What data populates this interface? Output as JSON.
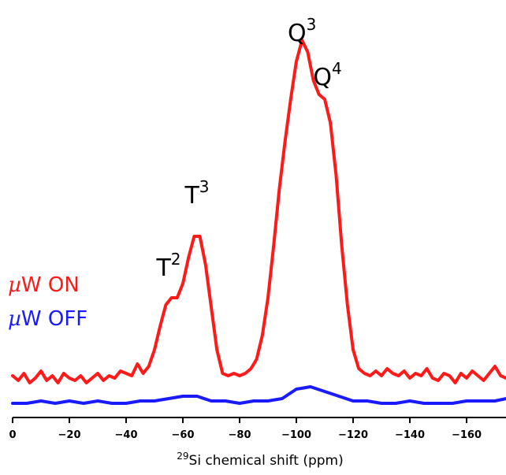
{
  "chart_data": {
    "type": "line",
    "xlabel": {
      "sup": "29",
      "main": "Si chemical shift (ppm)"
    },
    "xlim": [
      0,
      -175
    ],
    "x_ticks": [
      0,
      -20,
      -40,
      -60,
      -80,
      -100,
      -120,
      -140,
      -160
    ],
    "y_axis_shown": false,
    "grid": false,
    "legend_placement": "left",
    "legend": [
      {
        "mu": "µ",
        "text": "W ON",
        "color": "#ff1a1a"
      },
      {
        "mu": "µ",
        "text": "W OFF",
        "color": "#1a1aff"
      }
    ],
    "annotations": [
      {
        "base": "T",
        "sup": "2",
        "x": -55
      },
      {
        "base": "T",
        "sup": "3",
        "x": -65
      },
      {
        "base": "Q",
        "sup": "3",
        "x": -102
      },
      {
        "base": "Q",
        "sup": "4",
        "x": -111
      }
    ],
    "series": [
      {
        "name": "µW ON",
        "color": "#ff1a1a",
        "x": [
          0,
          -2,
          -4,
          -6,
          -8,
          -10,
          -12,
          -14,
          -16,
          -18,
          -20,
          -22,
          -24,
          -26,
          -28,
          -30,
          -32,
          -34,
          -36,
          -38,
          -40,
          -42,
          -44,
          -46,
          -48,
          -50,
          -52,
          -54,
          -56,
          -58,
          -60,
          -62,
          -64,
          -66,
          -68,
          -70,
          -72,
          -74,
          -76,
          -78,
          -80,
          -82,
          -84,
          -86,
          -88,
          -90,
          -92,
          -94,
          -96,
          -98,
          -100,
          -102,
          -104,
          -106,
          -108,
          -110,
          -112,
          -114,
          -116,
          -118,
          -120,
          -122,
          -124,
          -126,
          -128,
          -130,
          -132,
          -134,
          -136,
          -138,
          -140,
          -142,
          -144,
          -146,
          -148,
          -150,
          -152,
          -154,
          -156,
          -158,
          -160,
          -162,
          -164,
          -166,
          -168,
          -170,
          -172,
          -174
        ],
        "y": [
          0.05,
          0.03,
          0.06,
          0.02,
          0.04,
          0.07,
          0.03,
          0.05,
          0.02,
          0.06,
          0.04,
          0.03,
          0.05,
          0.02,
          0.04,
          0.06,
          0.03,
          0.05,
          0.04,
          0.07,
          0.06,
          0.05,
          0.1,
          0.06,
          0.09,
          0.16,
          0.26,
          0.35,
          0.38,
          0.38,
          0.44,
          0.55,
          0.64,
          0.64,
          0.52,
          0.34,
          0.16,
          0.06,
          0.05,
          0.06,
          0.05,
          0.06,
          0.08,
          0.12,
          0.22,
          0.38,
          0.6,
          0.84,
          1.04,
          1.22,
          1.38,
          1.47,
          1.42,
          1.3,
          1.24,
          1.22,
          1.12,
          0.9,
          0.6,
          0.35,
          0.16,
          0.08,
          0.06,
          0.05,
          0.07,
          0.05,
          0.08,
          0.06,
          0.05,
          0.07,
          0.04,
          0.06,
          0.05,
          0.08,
          0.04,
          0.03,
          0.06,
          0.05,
          0.02,
          0.06,
          0.04,
          0.07,
          0.05,
          0.03,
          0.06,
          0.09,
          0.05,
          0.04
        ]
      },
      {
        "name": "µW OFF",
        "color": "#1a1aff",
        "x": [
          0,
          -5,
          -10,
          -15,
          -20,
          -25,
          -30,
          -35,
          -40,
          -45,
          -50,
          -55,
          -60,
          -65,
          -70,
          -75,
          -80,
          -85,
          -90,
          -95,
          -100,
          -105,
          -110,
          -115,
          -120,
          -125,
          -130,
          -135,
          -140,
          -145,
          -150,
          -155,
          -160,
          -165,
          -170,
          -174
        ],
        "y": [
          0.0,
          0.0,
          0.01,
          0.0,
          0.01,
          0.0,
          0.01,
          0.0,
          0.0,
          0.01,
          0.01,
          0.02,
          0.03,
          0.03,
          0.01,
          0.01,
          0.0,
          0.01,
          0.01,
          0.02,
          0.06,
          0.07,
          0.05,
          0.03,
          0.01,
          0.01,
          0.0,
          0.0,
          0.01,
          0.0,
          0.0,
          0.0,
          0.01,
          0.01,
          0.01,
          0.02
        ]
      }
    ]
  }
}
